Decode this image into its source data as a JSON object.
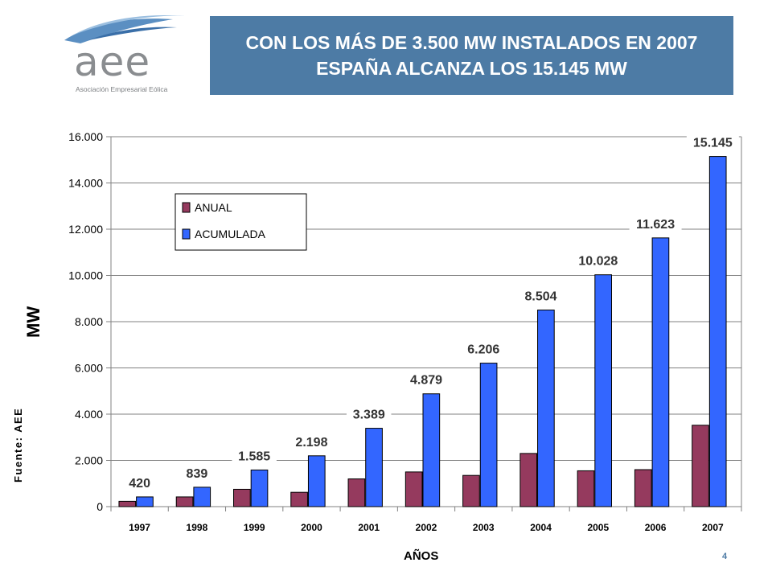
{
  "header": {
    "logo_text": "aee",
    "logo_subtitle": "Asociación Empresarial Eólica",
    "title": "CON LOS MÁS DE 3.500 MW INSTALADOS EN 2007 ESPAÑA ALCANZA LOS 15.145 MW"
  },
  "footer": {
    "page_number": "4",
    "source": "Fuente: AEE"
  },
  "colors": {
    "annual": "#953a5e",
    "cumulative": "#3366ff",
    "title_bg": "#4d7ba5"
  },
  "chart_data": {
    "type": "bar",
    "title": "",
    "xlabel": "AÑOS",
    "ylabel": "MW",
    "ylim": [
      0,
      16000
    ],
    "yticks": [
      0,
      2000,
      4000,
      6000,
      8000,
      10000,
      12000,
      14000,
      16000
    ],
    "ytick_labels": [
      "0",
      "2.000",
      "4.000",
      "6.000",
      "8.000",
      "10.000",
      "12.000",
      "14.000",
      "16.000"
    ],
    "categories": [
      "1997",
      "1998",
      "1999",
      "2000",
      "2001",
      "2002",
      "2003",
      "2004",
      "2005",
      "2006",
      "2007"
    ],
    "series": [
      {
        "name": "ANUAL",
        "values": [
          230,
          420,
          750,
          620,
          1200,
          1500,
          1350,
          2300,
          1550,
          1600,
          3520
        ]
      },
      {
        "name": "ACUMULADA",
        "values": [
          420,
          839,
          1585,
          2198,
          3389,
          4879,
          6206,
          8504,
          10028,
          11623,
          15145
        ],
        "data_labels": [
          "420",
          "839",
          "1.585",
          "2.198",
          "3.389",
          "4.879",
          "6.206",
          "8.504",
          "10.028",
          "11.623",
          "15.145"
        ]
      }
    ],
    "grid": true,
    "legend_position": "top-left"
  }
}
